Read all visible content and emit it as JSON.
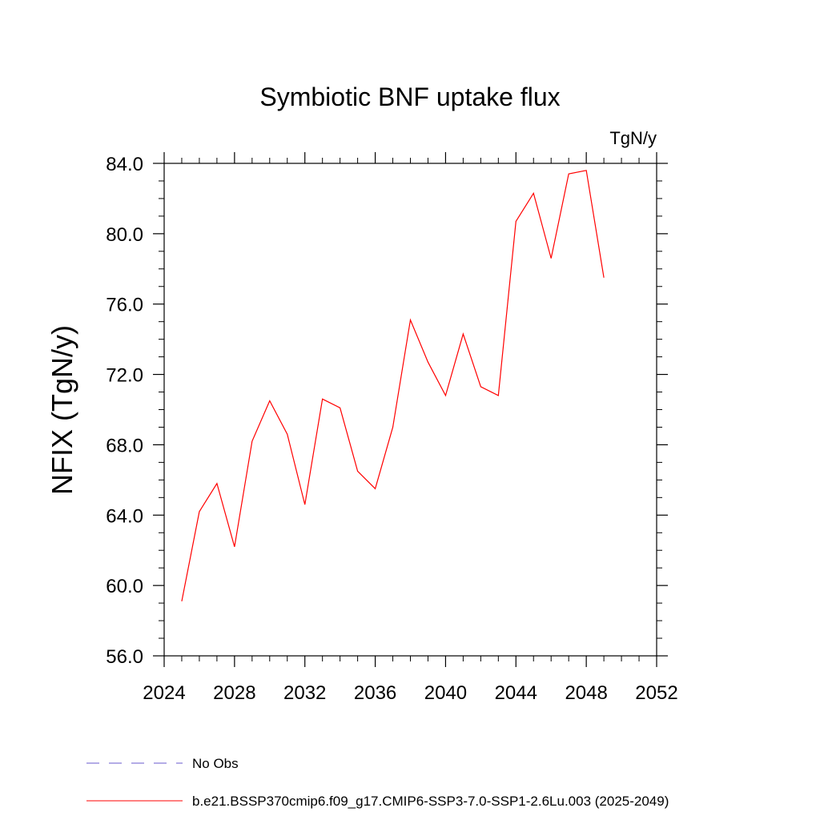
{
  "chart_data": {
    "type": "line",
    "title": "Symbiotic BNF uptake flux",
    "units_label": "TgN/y",
    "ylabel": "NFIX  (TgN/y)",
    "xlabel": "",
    "xlim": [
      2024,
      2052
    ],
    "ylim": [
      56.0,
      84.0
    ],
    "x_ticks": [
      "2024",
      "2028",
      "2032",
      "2036",
      "2040",
      "2044",
      "2048",
      "2052"
    ],
    "y_ticks": [
      "56.0",
      "60.0",
      "64.0",
      "68.0",
      "72.0",
      "76.0",
      "80.0",
      "84.0"
    ],
    "grid": false,
    "legend_position": "bottom",
    "series": [
      {
        "name": "No Obs",
        "color": "#6a5acd",
        "style": "dashed",
        "x": [],
        "y": []
      },
      {
        "name": "b.e21.BSSP370cmip6.f09_g17.CMIP6-SSP3-7.0-SSP1-2.6Lu.003 (2025-2049)",
        "color": "#ff0000",
        "style": "solid",
        "x": [
          2025,
          2026,
          2027,
          2028,
          2029,
          2030,
          2031,
          2032,
          2033,
          2034,
          2035,
          2036,
          2037,
          2038,
          2039,
          2040,
          2041,
          2042,
          2043,
          2044,
          2045,
          2046,
          2047,
          2048,
          2049
        ],
        "y": [
          59.1,
          64.2,
          65.8,
          62.2,
          68.2,
          70.5,
          68.6,
          64.6,
          70.6,
          70.1,
          66.5,
          65.5,
          69.0,
          75.1,
          72.7,
          70.8,
          74.3,
          71.3,
          70.8,
          80.7,
          82.3,
          78.6,
          83.4,
          83.6,
          77.5
        ]
      }
    ]
  }
}
